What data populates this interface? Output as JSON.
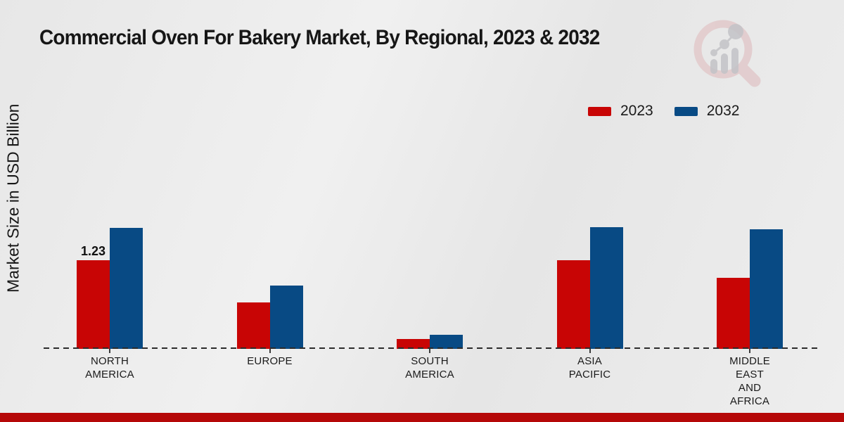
{
  "header": {
    "title": "Commercial Oven For Bakery Market, By Regional, 2023 & 2032"
  },
  "y_axis": {
    "label": "Market Size in USD Billion"
  },
  "legend": {
    "items": [
      {
        "label": "2023",
        "color": "#c80505"
      },
      {
        "label": "2032",
        "color": "#084a84"
      }
    ]
  },
  "chart_data": {
    "type": "bar",
    "title": "Commercial Oven For Bakery Market, By Regional, 2023 & 2032",
    "xlabel": "",
    "ylabel": "Market Size in USD Billion",
    "categories": [
      "NORTH AMERICA",
      "EUROPE",
      "SOUTH AMERICA",
      "ASIA PACIFIC",
      "MIDDLE EAST AND AFRICA"
    ],
    "category_label_lines": [
      [
        "NORTH",
        "AMERICA"
      ],
      [
        "EUROPE"
      ],
      [
        "SOUTH",
        "AMERICA"
      ],
      [
        "ASIA",
        "PACIFIC"
      ],
      [
        "MIDDLE",
        "EAST",
        "AND",
        "AFRICA"
      ]
    ],
    "series": [
      {
        "name": "2023",
        "color": "#c80505",
        "values": [
          1.23,
          0.64,
          0.14,
          1.23,
          0.99
        ]
      },
      {
        "name": "2032",
        "color": "#084a84",
        "values": [
          1.68,
          0.88,
          0.2,
          1.69,
          1.66
        ]
      }
    ],
    "bar_labels": [
      {
        "category_index": 0,
        "series_index": 0,
        "text": "1.23"
      }
    ],
    "ylim": [
      0,
      2
    ],
    "grid": false,
    "legend_position": "top-right",
    "baseline_style": "dashed"
  },
  "footer": {
    "accent_color": "#b50808"
  },
  "logo": {
    "name": "magnifier-bar-chart-watermark"
  }
}
